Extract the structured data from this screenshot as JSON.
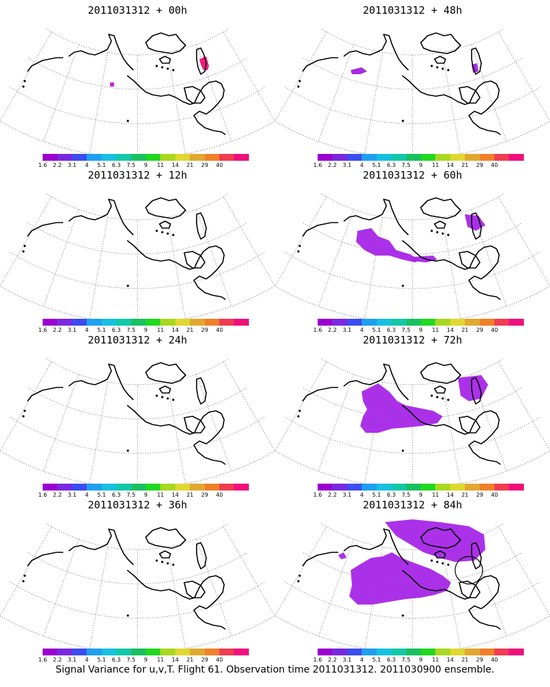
{
  "panels": [
    {
      "title": "2011031312 + 00h",
      "level": "00h"
    },
    {
      "title": "2011031312 + 48h",
      "level": "48h"
    },
    {
      "title": "2011031312 + 12h",
      "level": "12h"
    },
    {
      "title": "2011031312 + 60h",
      "level": "60h"
    },
    {
      "title": "2011031312 + 24h",
      "level": "24h"
    },
    {
      "title": "2011031312 + 72h",
      "level": "72h"
    },
    {
      "title": "2011031312 + 36h",
      "level": "36h"
    },
    {
      "title": "2011031312 + 84h",
      "level": "84h"
    }
  ],
  "colorbar": {
    "labels": [
      "1.6",
      "2.2",
      "3.1",
      "4",
      "5.1",
      "6.3",
      "7.5",
      "9",
      "11",
      "14",
      "21",
      "29",
      "40"
    ],
    "colors": [
      "#9b00d0",
      "#7a28e0",
      "#3b4cf0",
      "#1e9ff0",
      "#18c0e0",
      "#12c8a8",
      "#18c060",
      "#20d820",
      "#a8d820",
      "#e0d830",
      "#e0a830",
      "#f08028",
      "#f03c50",
      "#f0107c"
    ]
  },
  "footer": "Signal Variance for u,v,T. Flight 61. Observation time 2011031312. 2011030900 ensemble."
}
